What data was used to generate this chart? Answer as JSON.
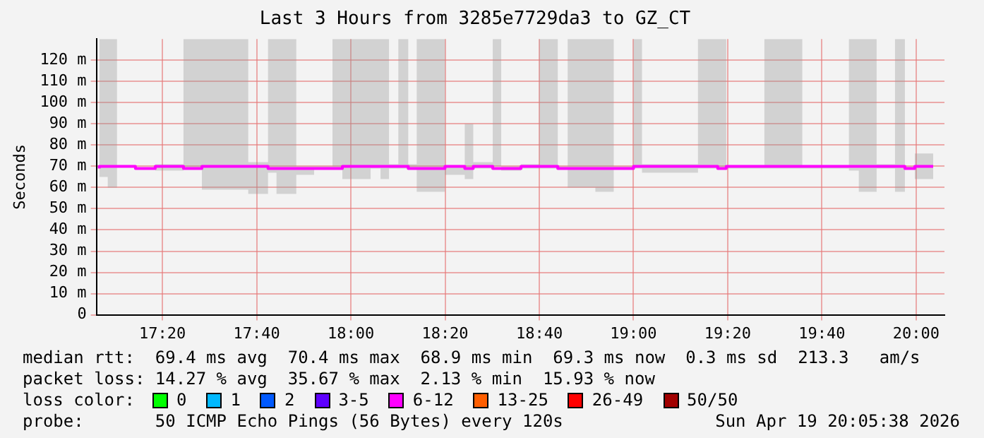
{
  "chart_data": {
    "type": "step",
    "title": "Last 3 Hours from 3285e7729da3 to GZ_CT",
    "ylabel": "Seconds",
    "x": [
      17.11,
      17.14,
      17.173,
      17.238,
      17.308,
      17.408,
      17.473,
      17.637,
      17.707,
      17.737,
      17.807,
      17.87,
      17.935,
      17.97,
      18.07,
      18.105,
      18.135,
      18.168,
      18.203,
      18.233,
      18.333,
      18.403,
      18.433,
      18.502,
      18.532,
      18.602,
      18.667,
      18.732,
      18.767,
      18.865,
      18.93,
      19.0,
      19.03,
      19.228,
      19.298,
      19.328,
      19.463,
      19.597,
      19.762,
      19.797,
      19.86,
      19.925,
      19.96,
      19.995,
      20.025,
      20.06
    ],
    "series": [
      {
        "color": "#ff00ff",
        "values": [
          69,
          70,
          70,
          70,
          69,
          70,
          69,
          70,
          70,
          69,
          69,
          69,
          69,
          69,
          70,
          70,
          70,
          70,
          70,
          69,
          69,
          70,
          69,
          70,
          69,
          69,
          70,
          70,
          69,
          69,
          69,
          69,
          70,
          70,
          70,
          69,
          70,
          70,
          70,
          70,
          70,
          70,
          70,
          69,
          70,
          70
        ],
        "lower": [
          68,
          65,
          60,
          null,
          58,
          68,
          69,
          59,
          57,
          67,
          57,
          66,
          69,
          69,
          64,
          69,
          64,
          69,
          69,
          69,
          58,
          66,
          64,
          69,
          70,
          68,
          69,
          69,
          69,
          60,
          58,
          69,
          69,
          67,
          69,
          69,
          69,
          69,
          69,
          68,
          58,
          69,
          58,
          69,
          64,
          64
        ],
        "upper": [
          77,
          130,
          130,
          null,
          130,
          71,
          130,
          130,
          72,
          130,
          130,
          70,
          70,
          130,
          130,
          130,
          130,
          71,
          130,
          71,
          130,
          70,
          90,
          72,
          130,
          70,
          71,
          130,
          70,
          130,
          130,
          70,
          130,
          71,
          130,
          130,
          70,
          130,
          70,
          130,
          130,
          71,
          130,
          70,
          76,
          76
        ]
      }
    ],
    "xlim": [
      17.1,
      20.1
    ],
    "xticks": [
      {
        "value": 17.3333,
        "label": "17:20"
      },
      {
        "value": 17.6667,
        "label": "17:40"
      },
      {
        "value": 18,
        "label": "18:00"
      },
      {
        "value": 18.3333,
        "label": "18:20"
      },
      {
        "value": 18.6667,
        "label": "18:40"
      },
      {
        "value": 19,
        "label": "19:00"
      },
      {
        "value": 19.3333,
        "label": "19:20"
      },
      {
        "value": 19.6667,
        "label": "19:40"
      },
      {
        "value": 20,
        "label": "20:00"
      }
    ],
    "ylim": [
      0,
      130
    ],
    "yticks": [
      0,
      {
        "value": 10,
        "label": "10 m"
      },
      {
        "value": 20,
        "label": "20 m"
      },
      {
        "value": 30,
        "label": "30 m"
      },
      {
        "value": 40,
        "label": "40 m"
      },
      {
        "value": 50,
        "label": "50 m"
      },
      {
        "value": 60,
        "label": "60 m"
      },
      {
        "value": 70,
        "label": "70 m"
      },
      {
        "value": 80,
        "label": "80 m"
      },
      {
        "value": 90,
        "label": "90 m"
      },
      {
        "value": 100,
        "label": "100 m"
      },
      {
        "value": 110,
        "label": "110 m"
      },
      {
        "value": 120,
        "label": "120 m"
      }
    ],
    "grid": true,
    "legend": false,
    "annotations": [
      "median rtt:  69.4 ms avg  70.4 ms max  68.9 ms min  69.3 ms now  0.3 ms sd  213.3   am/s",
      "packet loss: 14.27 % avg  35.67 % max  2.13 % min  15.93 % now",
      "loss color:",
      "0",
      "1",
      "2",
      "3-5",
      "6-12",
      "13-25",
      "26-49",
      "50/50",
      "probe:       50 ICMP Echo Pings (56 Bytes) every 120s",
      "Sun Apr 19 20:05:38 2026"
    ]
  }
}
